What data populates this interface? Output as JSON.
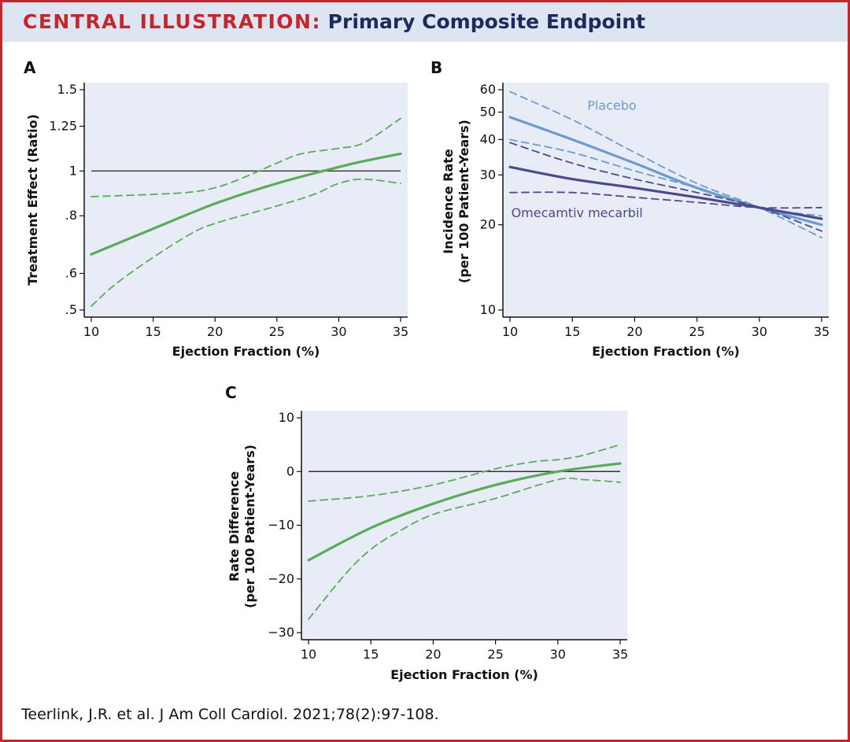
{
  "header": {
    "prefix": "CENTRAL ILLUSTRATION:",
    "title": "Primary Composite Endpoint",
    "prefix_color": "#c1272d",
    "title_color": "#1c2a5e",
    "bar_color": "#dde4f2"
  },
  "citation": "Teerlink, J.R. et al. J Am Coll Cardiol. 2021;78(2):97-108.",
  "colors": {
    "plot_bg": "#e8ecf7",
    "green": "#5aab5a",
    "placebo": "#6c9bd2",
    "omecamtiv": "#4a4a8c",
    "reference_line": "#333333"
  },
  "chart_data": [
    {
      "panel": "A",
      "type": "line",
      "xlabel": "Ejection Fraction (%)",
      "ylabel": "Treatment Effect (Ratio)",
      "xlim": [
        10,
        35
      ],
      "ylim": [
        0.5,
        1.5
      ],
      "yscale": "log",
      "xticks": [
        10,
        15,
        20,
        25,
        30,
        35
      ],
      "yticks": [
        {
          "value": 0.5,
          "label": ".5"
        },
        {
          "value": 0.6,
          "label": ".6"
        },
        {
          "value": 0.8,
          "label": ".8"
        },
        {
          "value": 1.0,
          "label": "1"
        },
        {
          "value": 1.25,
          "label": "1.25"
        },
        {
          "value": 1.5,
          "label": "1.5"
        }
      ],
      "reference_line": 1.0,
      "series": [
        {
          "role": "estimate",
          "style": "solid",
          "color": "#5aab5a",
          "x": [
            10,
            15,
            20,
            25,
            30,
            32,
            35
          ],
          "y": [
            0.66,
            0.75,
            0.85,
            0.94,
            1.02,
            1.05,
            1.09
          ]
        },
        {
          "role": "upper-ci",
          "style": "dashed",
          "color": "#5aab5a",
          "x": [
            10,
            15,
            18,
            20,
            22,
            25,
            27,
            30,
            32,
            35
          ],
          "y": [
            0.88,
            0.89,
            0.9,
            0.92,
            0.96,
            1.04,
            1.09,
            1.12,
            1.15,
            1.3
          ]
        },
        {
          "role": "lower-ci",
          "style": "dashed",
          "color": "#5aab5a",
          "x": [
            10,
            12,
            15,
            18,
            20,
            25,
            28,
            30,
            32,
            35
          ],
          "y": [
            0.51,
            0.57,
            0.65,
            0.73,
            0.77,
            0.84,
            0.89,
            0.94,
            0.96,
            0.94
          ]
        }
      ]
    },
    {
      "panel": "B",
      "type": "line",
      "xlabel": "Ejection Fraction (%)",
      "ylabel": [
        "Incidence Rate",
        "(per 100 Patient-Years)"
      ],
      "xlim": [
        10,
        35
      ],
      "ylim": [
        10,
        60
      ],
      "yscale": "log",
      "xticks": [
        10,
        15,
        20,
        25,
        30,
        35
      ],
      "yticks": [
        {
          "value": 10,
          "label": "10"
        },
        {
          "value": 20,
          "label": "20"
        },
        {
          "value": 30,
          "label": "30"
        },
        {
          "value": 40,
          "label": "40"
        },
        {
          "value": 50,
          "label": "50"
        },
        {
          "value": 60,
          "label": "60"
        }
      ],
      "series_labels": [
        {
          "name": "Placebo",
          "x": 16.2,
          "y": 51,
          "color": "#6c9bd2"
        },
        {
          "name": "Omecamtiv mecarbil",
          "x": 10.1,
          "y": 21.3,
          "color": "#4a4a8c"
        }
      ],
      "series": [
        {
          "role": "estimate",
          "name": "Placebo",
          "style": "solid",
          "color": "#6c9bd2",
          "x": [
            10,
            15,
            20,
            25,
            30,
            35
          ],
          "y": [
            48,
            40,
            33,
            27,
            23,
            20
          ]
        },
        {
          "role": "upper-ci",
          "name": "Placebo",
          "style": "dashed",
          "color": "#6c9bd2",
          "x": [
            10,
            15,
            20,
            25,
            30,
            35
          ],
          "y": [
            59,
            47,
            36,
            28,
            23,
            18
          ]
        },
        {
          "role": "lower-ci",
          "name": "Placebo",
          "style": "dashed",
          "color": "#6c9bd2",
          "x": [
            10,
            15,
            20,
            25,
            30,
            35
          ],
          "y": [
            40,
            36,
            31,
            27,
            23,
            21.5
          ]
        },
        {
          "role": "estimate",
          "name": "Omecamtiv mecarbil",
          "style": "solid",
          "color": "#4a4a8c",
          "x": [
            10,
            15,
            20,
            25,
            30,
            35
          ],
          "y": [
            32,
            29,
            27,
            25,
            23,
            21
          ]
        },
        {
          "role": "upper-ci",
          "name": "Omecamtiv mecarbil",
          "style": "dashed",
          "color": "#4a4a8c",
          "x": [
            10,
            15,
            20,
            25,
            30,
            35
          ],
          "y": [
            39,
            33,
            29,
            26,
            23,
            19
          ]
        },
        {
          "role": "lower-ci",
          "name": "Omecamtiv mecarbil",
          "style": "dashed",
          "color": "#4a4a8c",
          "x": [
            10,
            15,
            20,
            25,
            30,
            35
          ],
          "y": [
            26,
            26,
            25,
            24,
            23,
            23
          ]
        }
      ]
    },
    {
      "panel": "C",
      "type": "line",
      "xlabel": "Ejection Fraction (%)",
      "ylabel": [
        "Rate Difference",
        "(per 100 Patient-Years)"
      ],
      "xlim": [
        10,
        35
      ],
      "ylim": [
        -30,
        10
      ],
      "yscale": "linear",
      "xticks": [
        10,
        15,
        20,
        25,
        30,
        35
      ],
      "yticks": [
        {
          "value": -30,
          "label": "−30"
        },
        {
          "value": -20,
          "label": "−20"
        },
        {
          "value": -10,
          "label": "−10"
        },
        {
          "value": 0,
          "label": "0"
        },
        {
          "value": 10,
          "label": "10"
        }
      ],
      "reference_line": 0,
      "series": [
        {
          "role": "estimate",
          "style": "solid",
          "color": "#5aab5a",
          "x": [
            10,
            15,
            20,
            25,
            30,
            35
          ],
          "y": [
            -16.5,
            -10.5,
            -6,
            -2.5,
            0,
            1.5
          ]
        },
        {
          "role": "upper-ci",
          "style": "dashed",
          "color": "#5aab5a",
          "x": [
            10,
            15,
            20,
            25,
            28,
            30,
            32,
            35
          ],
          "y": [
            -5.5,
            -4.5,
            -2.5,
            0.5,
            1.8,
            2.2,
            3,
            5
          ]
        },
        {
          "role": "lower-ci",
          "style": "dashed",
          "color": "#5aab5a",
          "x": [
            10,
            13,
            15,
            17,
            20,
            25,
            30,
            32,
            35
          ],
          "y": [
            -27.5,
            -19,
            -14.5,
            -11.5,
            -8,
            -5,
            -1.5,
            -1.5,
            -2
          ]
        }
      ]
    }
  ]
}
